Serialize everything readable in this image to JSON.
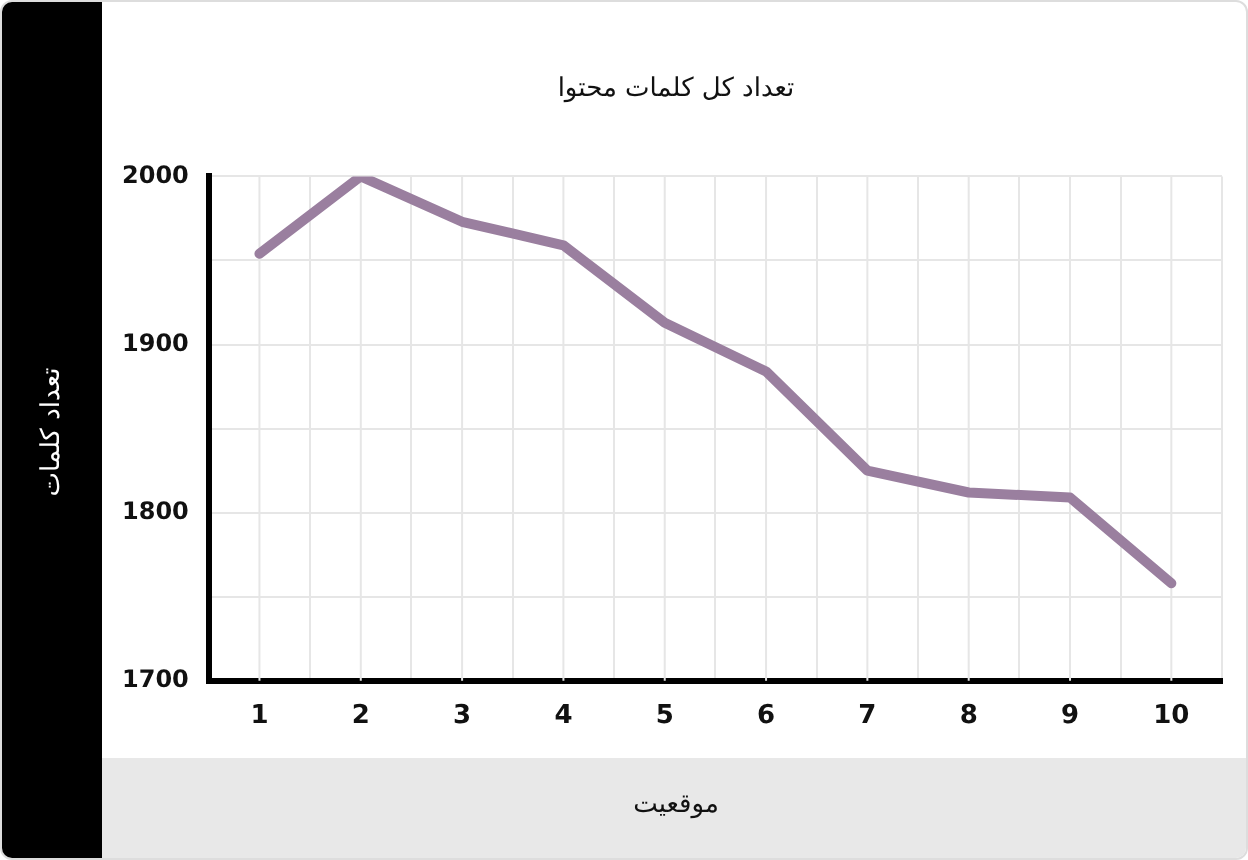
{
  "chart_data": {
    "type": "line",
    "title": "تعداد کل کلمات محتوا",
    "xlabel": "موقعیت",
    "ylabel": "تعداد کلمات",
    "categories": [
      "1",
      "2",
      "3",
      "4",
      "5",
      "6",
      "7",
      "8",
      "9",
      "10"
    ],
    "series": [
      {
        "color": "#9a7f9f",
        "values": [
          1954,
          2000,
          1973,
          1959,
          1913,
          1884,
          1825,
          1812,
          1809,
          1758
        ]
      }
    ],
    "ylim": [
      1700,
      2000
    ],
    "yticks": [
      1700,
      {
        "value": 1750,
        "label": null
      },
      1800,
      {
        "value": 1850,
        "label": null
      },
      1900,
      {
        "value": 1950,
        "label": null
      },
      2000
    ],
    "grid": true,
    "legend": false,
    "marker": "none",
    "line_style": "solid"
  }
}
